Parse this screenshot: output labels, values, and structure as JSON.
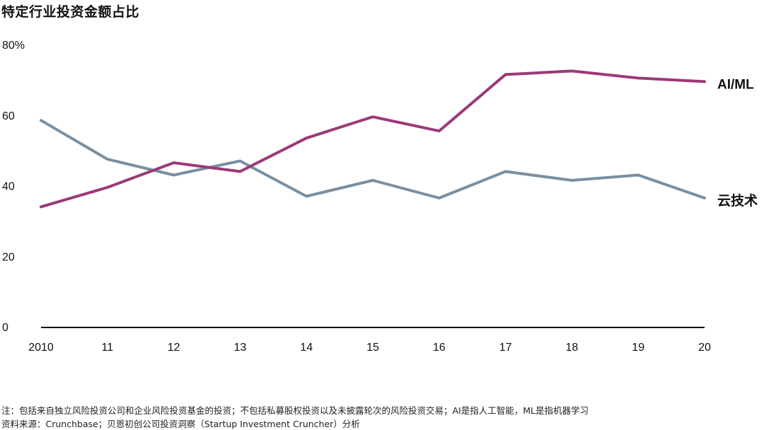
{
  "chart_data": {
    "type": "line",
    "title": "特定行业投资金额占比",
    "x": [
      "2010",
      "11",
      "12",
      "13",
      "14",
      "15",
      "16",
      "17",
      "18",
      "19",
      "20"
    ],
    "y_ticks": [
      "0",
      "20",
      "40",
      "60",
      "80%"
    ],
    "ylim": [
      0,
      80
    ],
    "grid": false,
    "legend": "inline-right",
    "series": [
      {
        "name": "AI/ML",
        "color": "#9b3a78",
        "values": [
          34,
          39.5,
          46.5,
          44,
          53.5,
          59.5,
          55.5,
          71.5,
          72.5,
          70.5,
          69.5
        ]
      },
      {
        "name": "云技术",
        "color": "#7a8fa0",
        "values": [
          58.5,
          47.5,
          43,
          47,
          37,
          41.5,
          36.5,
          44,
          41.5,
          43,
          36.5
        ]
      }
    ]
  },
  "notes": {
    "note": "注：包括来自独立风险投资公司和企业风险投资基金的投资；不包括私募股权投资以及未披露轮次的风险投资交易；AI是指人工智能，ML是指机器学习",
    "source": "资料来源：Crunchbase；贝恩初创公司投资洞察（Startup Investment Cruncher）分析"
  }
}
